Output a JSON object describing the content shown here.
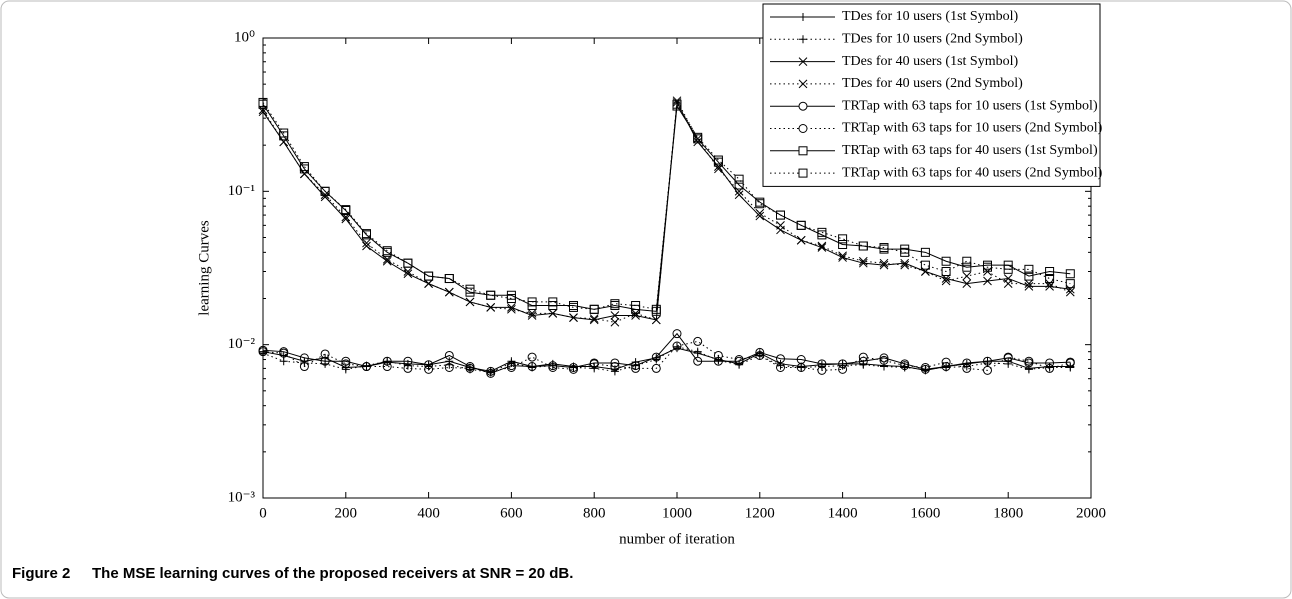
{
  "chart_data": {
    "type": "line",
    "ylabel": "learning Curves",
    "xlabel": "number of iteration",
    "caption_label": "Figure 2",
    "caption": "The MSE learning curves of the proposed receivers at SNR = 20 dB.",
    "xlim": [
      0,
      2000
    ],
    "xticks": [
      0,
      200,
      400,
      600,
      800,
      1000,
      1200,
      1400,
      1600,
      1800,
      2000
    ],
    "ylim": [
      0.001,
      1
    ],
    "log_y": true,
    "yticks": [
      {
        "value": 0.001,
        "label": "10⁻³"
      },
      {
        "value": 0.01,
        "label": "10⁻²"
      },
      {
        "value": 0.1,
        "label": "10⁻¹"
      },
      {
        "value": 1,
        "label": "10⁰"
      }
    ],
    "legend": "upper right",
    "x": [
      0,
      50,
      100,
      150,
      200,
      250,
      300,
      350,
      400,
      450,
      500,
      550,
      600,
      650,
      700,
      750,
      800,
      850,
      900,
      950,
      1000,
      1050,
      1100,
      1150,
      1200,
      1250,
      1300,
      1350,
      1400,
      1450,
      1500,
      1550,
      1600,
      1650,
      1700,
      1750,
      1800,
      1850,
      1900,
      1950
    ],
    "series": [
      {
        "name": "TDes for 10 users (1st Symbol)",
        "color": "#000",
        "marker": "plus",
        "dash": "solid",
        "values": [
          0.009,
          0.0085,
          0.0078,
          0.0082,
          0.0071,
          0.0072,
          0.0077,
          0.0075,
          0.0074,
          0.0078,
          0.0071,
          0.0067,
          0.0078,
          0.0072,
          0.0075,
          0.0072,
          0.0072,
          0.0069,
          0.0077,
          0.0082,
          0.0095,
          0.0088,
          0.008,
          0.0075,
          0.0088,
          0.0075,
          0.0072,
          0.0074,
          0.0075,
          0.0075,
          0.0073,
          0.0072,
          0.0068,
          0.0072,
          0.0075,
          0.0078,
          0.0078,
          0.007,
          0.0072,
          0.0072
        ]
      },
      {
        "name": "TDes for 10 users (2nd Symbol)",
        "color": "#000",
        "marker": "plus",
        "dash": "dotted",
        "values": [
          0.0088,
          0.0078,
          0.0076,
          0.0075,
          0.0069,
          0.0073,
          0.0078,
          0.0073,
          0.0072,
          0.0074,
          0.0069,
          0.0066,
          0.0076,
          0.0071,
          0.0073,
          0.0071,
          0.007,
          0.0067,
          0.0073,
          0.008,
          0.0097,
          0.009,
          0.0079,
          0.0074,
          0.0085,
          0.0073,
          0.0071,
          0.0072,
          0.0073,
          0.0074,
          0.0072,
          0.0071,
          0.0069,
          0.0071,
          0.0072,
          0.0076,
          0.0075,
          0.0069,
          0.0071,
          0.0071
        ]
      },
      {
        "name": "TDes for 40 users (1st Symbol)",
        "color": "#000",
        "marker": "x",
        "dash": "solid",
        "values": [
          0.33,
          0.21,
          0.13,
          0.092,
          0.066,
          0.044,
          0.035,
          0.029,
          0.025,
          0.022,
          0.019,
          0.0175,
          0.0175,
          0.0155,
          0.016,
          0.015,
          0.0145,
          0.0155,
          0.0155,
          0.0145,
          0.38,
          0.21,
          0.145,
          0.095,
          0.069,
          0.056,
          0.048,
          0.043,
          0.037,
          0.034,
          0.033,
          0.034,
          0.03,
          0.027,
          0.025,
          0.026,
          0.027,
          0.024,
          0.024,
          0.023
        ]
      },
      {
        "name": "TDes for 40 users (2nd Symbol)",
        "color": "#000",
        "marker": "x",
        "dash": "dotted",
        "values": [
          0.34,
          0.21,
          0.13,
          0.095,
          0.068,
          0.046,
          0.036,
          0.03,
          0.025,
          0.022,
          0.019,
          0.0175,
          0.017,
          0.016,
          0.016,
          0.015,
          0.0148,
          0.014,
          0.016,
          0.0145,
          0.39,
          0.22,
          0.14,
          0.1,
          0.072,
          0.06,
          0.048,
          0.044,
          0.038,
          0.035,
          0.034,
          0.033,
          0.03,
          0.026,
          0.028,
          0.03,
          0.025,
          0.025,
          0.025,
          0.022
        ]
      },
      {
        "name": "TRTap with 63 taps for 10 users (1st Symbol)",
        "color": "#000",
        "marker": "circle",
        "dash": "solid",
        "values": [
          0.0092,
          0.009,
          0.0082,
          0.0078,
          0.0078,
          0.0072,
          0.0078,
          0.0078,
          0.0074,
          0.0085,
          0.0072,
          0.0065,
          0.0073,
          0.0072,
          0.0073,
          0.0071,
          0.0076,
          0.0076,
          0.0073,
          0.0083,
          0.0118,
          0.0078,
          0.0078,
          0.0078,
          0.0089,
          0.0081,
          0.008,
          0.0075,
          0.0075,
          0.0078,
          0.0082,
          0.0075,
          0.0069,
          0.0072,
          0.0076,
          0.0078,
          0.0082,
          0.0076,
          0.0076,
          0.0077
        ]
      },
      {
        "name": "TRTap with 63 taps for 10 users (2nd Symbol)",
        "color": "#000",
        "marker": "circle",
        "dash": "dotted",
        "values": [
          0.009,
          0.0088,
          0.0072,
          0.0087,
          0.0075,
          0.0072,
          0.0072,
          0.007,
          0.0069,
          0.0071,
          0.007,
          0.0067,
          0.0071,
          0.0083,
          0.0071,
          0.0069,
          0.0075,
          0.0072,
          0.007,
          0.007,
          0.0098,
          0.0105,
          0.0085,
          0.008,
          0.0085,
          0.0071,
          0.0071,
          0.0068,
          0.0069,
          0.0083,
          0.0079,
          0.0073,
          0.0071,
          0.0077,
          0.007,
          0.0068,
          0.0083,
          0.0078,
          0.007,
          0.0076
        ]
      },
      {
        "name": "TRTap with 63 taps for 40 users (1st Symbol)",
        "color": "#000",
        "marker": "square",
        "dash": "solid",
        "values": [
          0.37,
          0.23,
          0.14,
          0.1,
          0.075,
          0.052,
          0.04,
          0.034,
          0.028,
          0.027,
          0.022,
          0.021,
          0.021,
          0.018,
          0.018,
          0.018,
          0.017,
          0.018,
          0.017,
          0.0165,
          0.36,
          0.22,
          0.155,
          0.11,
          0.085,
          0.07,
          0.06,
          0.052,
          0.045,
          0.044,
          0.042,
          0.042,
          0.04,
          0.035,
          0.032,
          0.033,
          0.033,
          0.028,
          0.03,
          0.029
        ]
      },
      {
        "name": "TRTap with 63 taps for 40 users (2nd Symbol)",
        "color": "#000",
        "marker": "square",
        "dash": "dotted",
        "values": [
          0.38,
          0.24,
          0.145,
          0.1,
          0.076,
          0.053,
          0.041,
          0.034,
          0.028,
          0.027,
          0.023,
          0.021,
          0.02,
          0.019,
          0.019,
          0.0175,
          0.017,
          0.0185,
          0.018,
          0.017,
          0.37,
          0.225,
          0.16,
          0.12,
          0.083,
          0.07,
          0.06,
          0.054,
          0.049,
          0.044,
          0.043,
          0.04,
          0.033,
          0.03,
          0.035,
          0.032,
          0.031,
          0.031,
          0.027,
          0.025
        ]
      }
    ]
  }
}
